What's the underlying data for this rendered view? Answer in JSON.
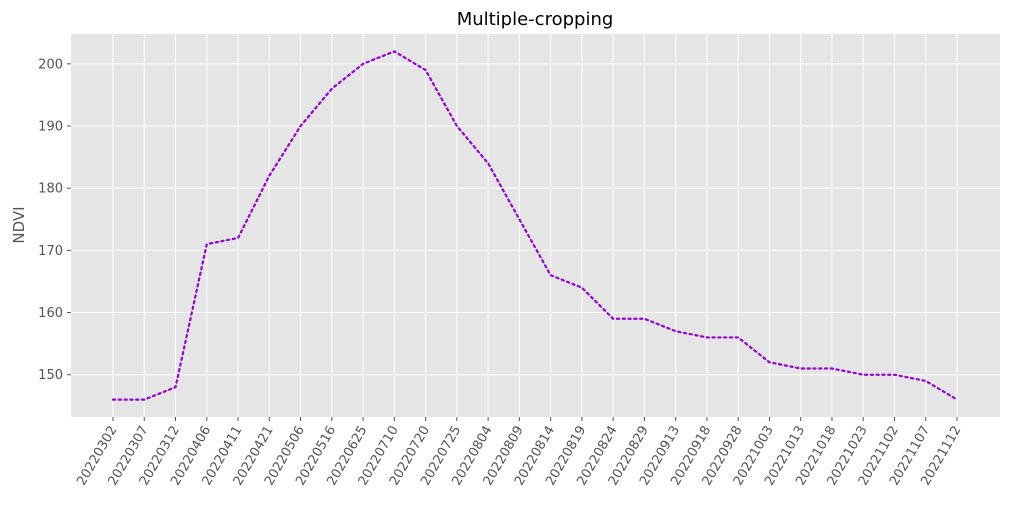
{
  "chart_data": {
    "type": "line",
    "title": "Multiple-cropping",
    "xlabel": "",
    "ylabel": "NDVI",
    "categories": [
      "20220302",
      "20220307",
      "20220312",
      "20220406",
      "20220411",
      "20220421",
      "20220506",
      "20220516",
      "20220625",
      "20220710",
      "20220720",
      "20220725",
      "20220804",
      "20220809",
      "20220814",
      "20220819",
      "20220824",
      "20220829",
      "20220913",
      "20220918",
      "20220928",
      "20221003",
      "20221013",
      "20221018",
      "20221023",
      "20221102",
      "20221107",
      "20221112"
    ],
    "series": [
      {
        "values": [
          146,
          146,
          148,
          171,
          172,
          182,
          190,
          196,
          200,
          202,
          199,
          190,
          184,
          175,
          166,
          164,
          159,
          159,
          157,
          156,
          156,
          152,
          151,
          151,
          150,
          150,
          149,
          146
        ],
        "color": "#9400D3",
        "line_style": "dotted"
      }
    ],
    "yticks": [
      150,
      160,
      170,
      180,
      190,
      200
    ],
    "ylim": [
      143.2,
      204.8
    ],
    "grid": true,
    "legend": "none",
    "background": "#E5E5E5",
    "grid_color": "#FFFFFF"
  }
}
